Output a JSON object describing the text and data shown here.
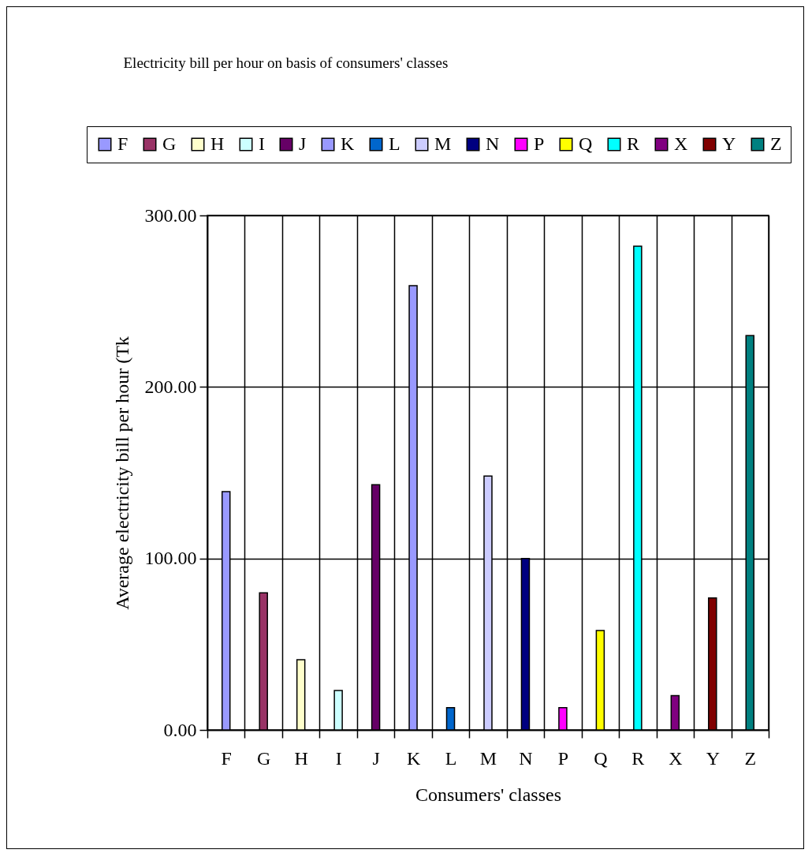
{
  "chart_data": {
    "type": "bar",
    "title": "Electricity bill per hour on basis of  consumers' classes",
    "xlabel": "Consumers' classes",
    "ylabel": "Average electricity bill per hour (Tk",
    "categories": [
      "F",
      "G",
      "H",
      "I",
      "J",
      "K",
      "L",
      "M",
      "N",
      "P",
      "Q",
      "R",
      "X",
      "Y",
      "Z"
    ],
    "series": [
      {
        "name": "F",
        "color": "#9999ff",
        "values": [
          139,
          null,
          null,
          null,
          null,
          null,
          null,
          null,
          null,
          null,
          null,
          null,
          null,
          null,
          null
        ]
      },
      {
        "name": "G",
        "color": "#993366",
        "values": [
          null,
          80,
          null,
          null,
          null,
          null,
          null,
          null,
          null,
          null,
          null,
          null,
          null,
          null,
          null
        ]
      },
      {
        "name": "H",
        "color": "#ffffcc",
        "values": [
          null,
          null,
          41,
          null,
          null,
          null,
          null,
          null,
          null,
          null,
          null,
          null,
          null,
          null,
          null
        ]
      },
      {
        "name": "I",
        "color": "#ccffff",
        "values": [
          null,
          null,
          null,
          23,
          null,
          null,
          null,
          null,
          null,
          null,
          null,
          null,
          null,
          null,
          null
        ]
      },
      {
        "name": "J",
        "color": "#660066",
        "values": [
          null,
          null,
          null,
          null,
          143,
          null,
          null,
          null,
          null,
          null,
          null,
          null,
          null,
          null,
          null
        ]
      },
      {
        "name": "K",
        "color": "#9999ff",
        "values": [
          null,
          null,
          null,
          null,
          null,
          259,
          null,
          null,
          null,
          null,
          null,
          null,
          null,
          null,
          null
        ]
      },
      {
        "name": "L",
        "color": "#0066cc",
        "values": [
          null,
          null,
          null,
          null,
          null,
          null,
          13,
          null,
          null,
          null,
          null,
          null,
          null,
          null,
          null
        ]
      },
      {
        "name": "M",
        "color": "#ccccff",
        "values": [
          null,
          null,
          null,
          null,
          null,
          null,
          null,
          148,
          null,
          null,
          null,
          null,
          null,
          null,
          null
        ]
      },
      {
        "name": "N",
        "color": "#000080",
        "values": [
          null,
          null,
          null,
          null,
          null,
          null,
          null,
          null,
          100,
          null,
          null,
          null,
          null,
          null,
          null
        ]
      },
      {
        "name": "P",
        "color": "#ff00ff",
        "values": [
          null,
          null,
          null,
          null,
          null,
          null,
          null,
          null,
          null,
          13,
          null,
          null,
          null,
          null,
          null
        ]
      },
      {
        "name": "Q",
        "color": "#ffff00",
        "values": [
          null,
          null,
          null,
          null,
          null,
          null,
          null,
          null,
          null,
          null,
          58,
          null,
          null,
          null,
          null
        ]
      },
      {
        "name": "R",
        "color": "#00ffff",
        "values": [
          null,
          null,
          null,
          null,
          null,
          null,
          null,
          null,
          null,
          null,
          null,
          282,
          null,
          null,
          null
        ]
      },
      {
        "name": "X",
        "color": "#800080",
        "values": [
          null,
          null,
          null,
          null,
          null,
          null,
          null,
          null,
          null,
          null,
          null,
          null,
          20,
          null,
          null
        ]
      },
      {
        "name": "Y",
        "color": "#800000",
        "values": [
          null,
          null,
          null,
          null,
          null,
          null,
          null,
          null,
          null,
          null,
          null,
          null,
          null,
          77,
          null
        ]
      },
      {
        "name": "Z",
        "color": "#008080",
        "values": [
          null,
          null,
          null,
          null,
          null,
          null,
          null,
          null,
          null,
          null,
          null,
          null,
          null,
          null,
          230
        ]
      }
    ],
    "ylim": [
      0,
      300
    ],
    "yticks": [
      {
        "value": 0,
        "label": "0.00"
      },
      {
        "value": 100,
        "label": "100.00"
      },
      {
        "value": 200,
        "label": "200.00"
      },
      {
        "value": 300,
        "label": "300.00"
      }
    ],
    "grid": true,
    "legend": "top"
  }
}
